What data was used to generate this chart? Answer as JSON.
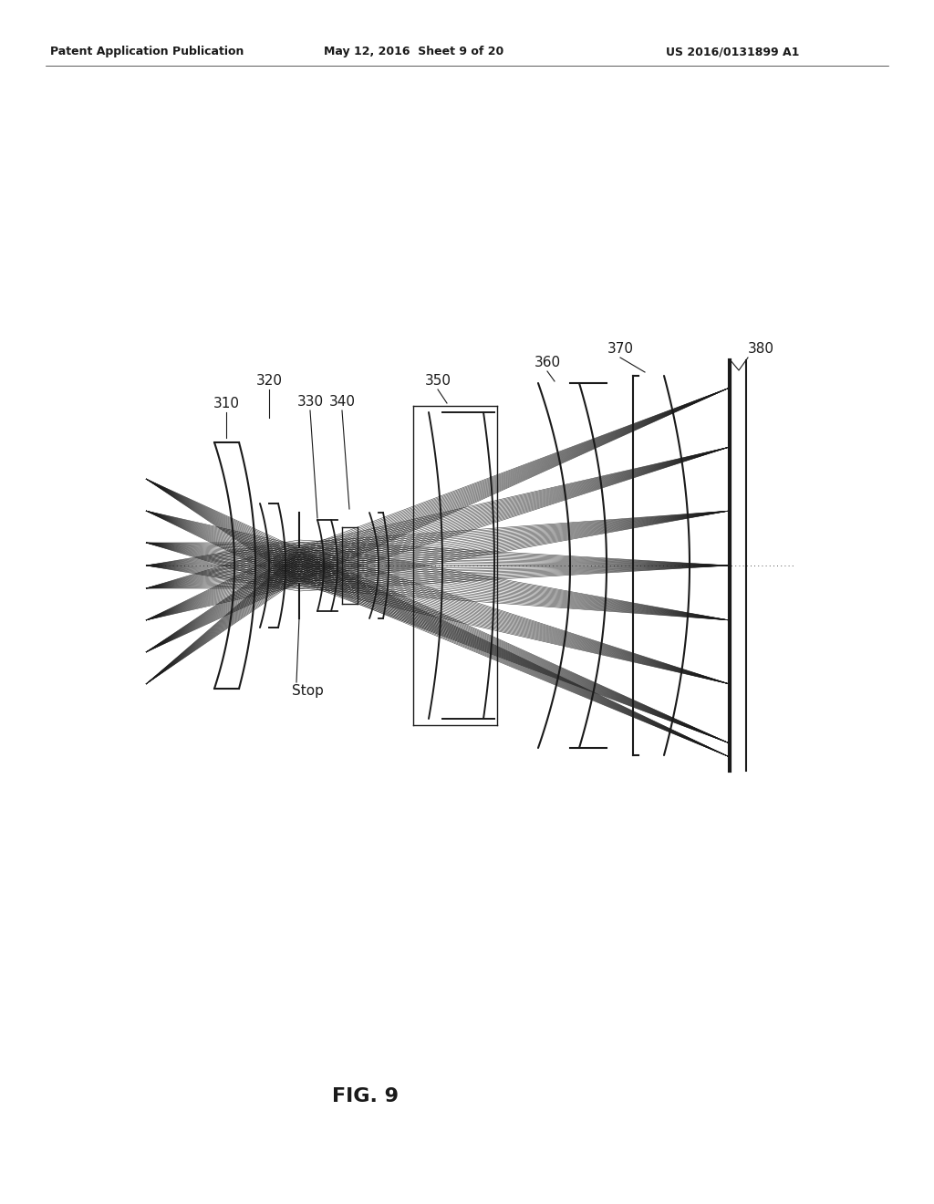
{
  "title_text": "FIG. 9",
  "header_left": "Patent Application Publication",
  "header_mid": "May 12, 2016  Sheet 9 of 20",
  "header_right": "US 2016/0131899 A1",
  "background_color": "#ffffff",
  "line_color": "#1a1a1a",
  "font_color": "#1a1a1a",
  "header_fontsize": 9,
  "title_fontsize": 16,
  "label_fontsize": 11,
  "stop_label": "Stop"
}
